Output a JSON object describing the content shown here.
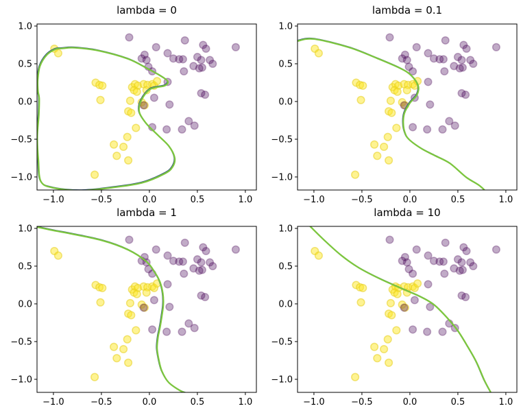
{
  "figure": {
    "background": "#ffffff",
    "description": "2x2 grid of matplotlib-style scatter subplots, identical data in each, showing a classifier decision boundary for different regularization strengths lambda"
  },
  "colors": {
    "class0_yellow": "#fde725",
    "class1_purple": "#440154",
    "boundary_green": "#7cc63e",
    "boundary_dark_edge": "#3a5d7d",
    "spine": "#000000"
  },
  "chart_data": {
    "type": "scatter",
    "grid": false,
    "legend": "none",
    "xlim": [
      -1.171,
      1.115
    ],
    "ylim": [
      -1.173,
      1.027
    ],
    "x_ticks": [
      -1.0,
      -0.5,
      0.0,
      0.5,
      1.0
    ],
    "y_ticks": [
      -1.0,
      -0.5,
      0.0,
      0.5,
      1.0
    ],
    "x_tick_labels": [
      "−1.0",
      "−0.5",
      "0.0",
      "0.5",
      "1.0"
    ],
    "y_tick_labels": [
      "−1.0",
      "−0.5",
      "0.0",
      "0.5",
      "1.0"
    ],
    "series": [
      {
        "name": "class 0 (yellow)",
        "marker": "circle",
        "alpha": 0.5,
        "points": [
          [
            -0.99,
            0.7
          ],
          [
            -0.95,
            0.64
          ],
          [
            -0.56,
            0.25
          ],
          [
            -0.52,
            0.22
          ],
          [
            -0.49,
            0.21
          ],
          [
            -0.51,
            0.02
          ],
          [
            -0.18,
            0.19
          ],
          [
            -0.15,
            0.23
          ],
          [
            -0.12,
            0.21
          ],
          [
            -0.06,
            0.23
          ],
          [
            -0.02,
            0.22
          ],
          [
            0.03,
            0.23
          ],
          [
            0.05,
            0.21
          ],
          [
            0.08,
            0.27
          ],
          [
            -0.16,
            0.15
          ],
          [
            -0.13,
            0.13
          ],
          [
            -0.03,
            0.15
          ],
          [
            -0.2,
            0.01
          ],
          [
            -0.08,
            -0.01
          ],
          [
            -0.05,
            -0.05
          ],
          [
            -0.22,
            -0.13
          ],
          [
            -0.19,
            -0.15
          ],
          [
            -0.14,
            -0.35
          ],
          [
            -0.23,
            -0.47
          ],
          [
            -0.37,
            -0.57
          ],
          [
            -0.27,
            -0.6
          ],
          [
            -0.34,
            -0.72
          ],
          [
            -0.22,
            -0.78
          ],
          [
            -0.57,
            -0.97
          ]
        ]
      },
      {
        "name": "class 1 (purple)",
        "marker": "circle",
        "alpha": 0.4,
        "points": [
          [
            -0.21,
            0.85
          ],
          [
            0.37,
            0.81
          ],
          [
            0.56,
            0.75
          ],
          [
            0.59,
            0.7
          ],
          [
            0.9,
            0.72
          ],
          [
            0.07,
            0.72
          ],
          [
            0.19,
            0.64
          ],
          [
            -0.05,
            0.62
          ],
          [
            -0.08,
            0.57
          ],
          [
            -0.03,
            0.55
          ],
          [
            0.25,
            0.57
          ],
          [
            0.31,
            0.56
          ],
          [
            0.35,
            0.56
          ],
          [
            0.5,
            0.59
          ],
          [
            0.54,
            0.55
          ],
          [
            0.63,
            0.55
          ],
          [
            0.66,
            0.5
          ],
          [
            0.46,
            0.47
          ],
          [
            0.52,
            0.44
          ],
          [
            0.55,
            0.45
          ],
          [
            -0.01,
            0.46
          ],
          [
            0.03,
            0.4
          ],
          [
            0.36,
            0.4
          ],
          [
            0.19,
            0.26
          ],
          [
            0.54,
            0.11
          ],
          [
            0.58,
            0.09
          ],
          [
            0.05,
            0.05
          ],
          [
            -0.06,
            -0.05
          ],
          [
            0.21,
            -0.04
          ],
          [
            0.03,
            -0.34
          ],
          [
            0.18,
            -0.37
          ],
          [
            0.34,
            -0.37
          ],
          [
            0.41,
            -0.26
          ],
          [
            0.47,
            -0.32
          ]
        ]
      }
    ],
    "subplots": [
      {
        "title": "lambda = 0",
        "boundary_closed": true,
        "boundary": [
          [
            -0.91,
            0.703
          ],
          [
            -0.78,
            0.712
          ],
          [
            -0.53,
            0.673
          ],
          [
            -0.22,
            0.564
          ],
          [
            -0.02,
            0.436
          ],
          [
            0.11,
            0.345
          ],
          [
            0.19,
            0.27
          ],
          [
            0.16,
            0.21
          ],
          [
            0.01,
            0.164
          ],
          [
            -0.086,
            0.012
          ],
          [
            -0.105,
            -0.139
          ],
          [
            -0.033,
            -0.291
          ],
          [
            0.086,
            -0.443
          ],
          [
            0.205,
            -0.594
          ],
          [
            0.264,
            -0.75
          ],
          [
            0.24,
            -0.87
          ],
          [
            0.157,
            -0.958
          ],
          [
            -0.081,
            -1.079
          ],
          [
            -0.414,
            -1.145
          ],
          [
            -0.72,
            -1.18
          ],
          [
            -1.0,
            -1.145
          ],
          [
            -1.13,
            -1.06
          ],
          [
            -1.157,
            -0.776
          ],
          [
            -1.168,
            -0.473
          ],
          [
            -1.152,
            -0.17
          ],
          [
            -1.148,
            0.042
          ],
          [
            -1.16,
            0.133
          ],
          [
            -1.163,
            0.285
          ],
          [
            -1.141,
            0.467
          ],
          [
            -1.069,
            0.618
          ],
          [
            -0.98,
            0.692
          ]
        ]
      },
      {
        "title": "lambda = 0.1",
        "boundary_closed": false,
        "boundary": [
          [
            -1.175,
            0.8
          ],
          [
            -1.0,
            0.828
          ],
          [
            -0.63,
            0.715
          ],
          [
            -0.343,
            0.573
          ],
          [
            -0.1,
            0.44
          ],
          [
            0.014,
            0.345
          ],
          [
            0.086,
            0.209
          ],
          [
            0.074,
            0.088
          ],
          [
            0.002,
            -0.018
          ],
          [
            -0.057,
            -0.155
          ],
          [
            -0.069,
            -0.291
          ],
          [
            -0.052,
            -0.412
          ],
          [
            -0.009,
            -0.503
          ],
          [
            0.121,
            -0.625
          ],
          [
            0.257,
            -0.715
          ],
          [
            0.419,
            -0.821
          ],
          [
            0.586,
            -1.003
          ],
          [
            0.72,
            -1.11
          ],
          [
            0.79,
            -1.19
          ]
        ]
      },
      {
        "title": "lambda = 1",
        "boundary_closed": false,
        "boundary": [
          [
            -1.175,
            1.02
          ],
          [
            -0.97,
            0.965
          ],
          [
            -0.84,
            0.935
          ],
          [
            -0.49,
            0.84
          ],
          [
            -0.22,
            0.715
          ],
          [
            -0.03,
            0.56
          ],
          [
            0.06,
            0.41
          ],
          [
            0.11,
            0.29
          ],
          [
            0.14,
            0.14
          ],
          [
            0.145,
            -0.01
          ],
          [
            0.13,
            -0.16
          ],
          [
            0.11,
            -0.315
          ],
          [
            0.09,
            -0.44
          ],
          [
            0.08,
            -0.59
          ],
          [
            0.098,
            -0.74
          ],
          [
            0.13,
            -0.89
          ],
          [
            0.2,
            -1.04
          ],
          [
            0.32,
            -1.15
          ],
          [
            0.4,
            -1.19
          ]
        ]
      },
      {
        "title": "lambda = 10",
        "boundary_closed": false,
        "boundary": [
          [
            -1.045,
            1.035
          ],
          [
            -0.886,
            0.836
          ],
          [
            -0.712,
            0.639
          ],
          [
            -0.533,
            0.479
          ],
          [
            -0.319,
            0.336
          ],
          [
            -0.081,
            0.2
          ],
          [
            0.11,
            0.094
          ],
          [
            0.252,
            -0.012
          ],
          [
            0.395,
            -0.194
          ],
          [
            0.502,
            -0.361
          ],
          [
            0.598,
            -0.557
          ],
          [
            0.693,
            -0.77
          ],
          [
            0.776,
            -1.012
          ],
          [
            0.85,
            -1.19
          ]
        ]
      }
    ]
  }
}
